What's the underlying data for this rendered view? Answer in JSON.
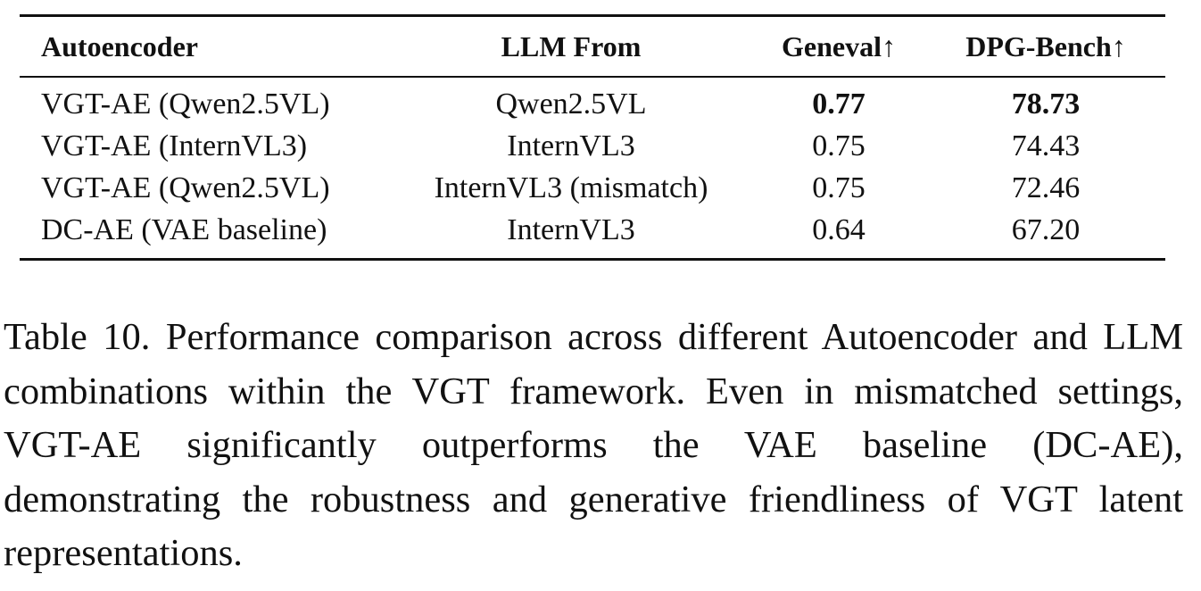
{
  "table": {
    "headers": [
      "Autoencoder",
      "LLM From",
      "Geneval↑",
      "DPG-Bench↑"
    ],
    "rows": [
      {
        "autoencoder": "VGT-AE (Qwen2.5VL)",
        "llm_from": "Qwen2.5VL",
        "geneval": "0.77",
        "dpg_bench": "78.73",
        "bold": true
      },
      {
        "autoencoder": "VGT-AE (InternVL3)",
        "llm_from": "InternVL3",
        "geneval": "0.75",
        "dpg_bench": "74.43"
      },
      {
        "autoencoder": "VGT-AE (Qwen2.5VL)",
        "llm_from": "InternVL3 (mismatch)",
        "geneval": "0.75",
        "dpg_bench": "72.46"
      },
      {
        "autoencoder": "DC-AE (VAE baseline)",
        "llm_from": "InternVL3",
        "geneval": "0.64",
        "dpg_bench": "67.20"
      }
    ]
  },
  "caption": "Table 10. Performance comparison across different Autoencoder and LLM combinations within the VGT framework.  Even in mismatched settings, VGT-AE significantly outperforms the VAE baseline (DC-AE), demonstrating the robustness and generative friendliness of VGT latent representations."
}
